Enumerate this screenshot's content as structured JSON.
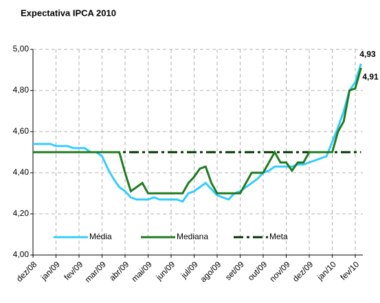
{
  "chart_data": {
    "type": "line",
    "title": "Expectativa IPCA 2010",
    "categories": [
      "dez/08",
      null,
      null,
      null,
      "jan/09",
      null,
      null,
      null,
      "fev/09",
      null,
      null,
      null,
      "mar/09",
      null,
      null,
      null,
      "abr/09",
      null,
      null,
      null,
      "mai/09",
      null,
      null,
      null,
      "jun/09",
      null,
      null,
      null,
      "jul/09",
      null,
      null,
      null,
      "ago/09",
      null,
      null,
      null,
      "set/09",
      null,
      null,
      null,
      "out/09",
      null,
      null,
      null,
      "nov/09",
      null,
      null,
      null,
      "dez/09",
      null,
      null,
      null,
      "jan/10",
      null,
      null,
      null,
      "fev/10",
      null
    ],
    "series": [
      {
        "name": "Média",
        "color": "#33ccff",
        "dash": "solid",
        "values": [
          4.54,
          4.54,
          4.54,
          4.54,
          4.53,
          4.53,
          4.53,
          4.52,
          4.52,
          4.52,
          4.5,
          4.5,
          4.48,
          4.42,
          4.37,
          4.33,
          4.31,
          4.28,
          4.27,
          4.27,
          4.27,
          4.28,
          4.27,
          4.27,
          4.27,
          4.27,
          4.26,
          4.3,
          4.31,
          4.33,
          4.35,
          4.32,
          4.29,
          4.28,
          4.27,
          4.3,
          4.31,
          4.33,
          4.35,
          4.37,
          4.4,
          4.41,
          4.43,
          4.43,
          4.43,
          4.43,
          4.44,
          4.44,
          4.45,
          4.46,
          4.47,
          4.48,
          4.55,
          4.62,
          4.7,
          4.8,
          4.84,
          4.93
        ],
        "value_labels": [
          null,
          null,
          null,
          null,
          null,
          null,
          null,
          null,
          null,
          null,
          null,
          null,
          null,
          null,
          null,
          null,
          null,
          null,
          null,
          null,
          null,
          null,
          null,
          null,
          null,
          null,
          null,
          null,
          null,
          null,
          null,
          null,
          null,
          null,
          null,
          null,
          null,
          null,
          null,
          null,
          null,
          null,
          null,
          null,
          null,
          null,
          null,
          null,
          null,
          null,
          null,
          null,
          null,
          null,
          null,
          null,
          null,
          "4,93"
        ]
      },
      {
        "name": "Mediana",
        "color": "#1e7b1e",
        "dash": "solid",
        "values": [
          4.5,
          4.5,
          4.5,
          4.5,
          4.5,
          4.5,
          4.5,
          4.5,
          4.5,
          4.5,
          4.5,
          4.5,
          4.5,
          4.5,
          4.5,
          4.5,
          4.4,
          4.31,
          4.33,
          4.35,
          4.3,
          4.3,
          4.3,
          4.3,
          4.3,
          4.3,
          4.3,
          4.35,
          4.38,
          4.42,
          4.43,
          4.35,
          4.3,
          4.3,
          4.3,
          4.3,
          4.3,
          4.35,
          4.4,
          4.4,
          4.4,
          4.45,
          4.5,
          4.45,
          4.45,
          4.41,
          4.45,
          4.45,
          4.5,
          4.5,
          4.5,
          4.5,
          4.5,
          4.6,
          4.65,
          4.8,
          4.81,
          4.91
        ],
        "value_labels": [
          null,
          null,
          null,
          null,
          null,
          null,
          null,
          null,
          null,
          null,
          null,
          null,
          null,
          null,
          null,
          null,
          null,
          null,
          null,
          null,
          null,
          null,
          null,
          null,
          null,
          null,
          null,
          null,
          null,
          null,
          null,
          null,
          null,
          null,
          null,
          null,
          null,
          null,
          null,
          null,
          null,
          null,
          null,
          null,
          null,
          null,
          null,
          null,
          null,
          null,
          null,
          null,
          null,
          null,
          null,
          null,
          null,
          "4,91"
        ]
      },
      {
        "name": "Meta",
        "color": "#003300",
        "dash": "dashdot",
        "values": [
          4.5,
          4.5,
          4.5,
          4.5,
          4.5,
          4.5,
          4.5,
          4.5,
          4.5,
          4.5,
          4.5,
          4.5,
          4.5,
          4.5,
          4.5,
          4.5,
          4.5,
          4.5,
          4.5,
          4.5,
          4.5,
          4.5,
          4.5,
          4.5,
          4.5,
          4.5,
          4.5,
          4.5,
          4.5,
          4.5,
          4.5,
          4.5,
          4.5,
          4.5,
          4.5,
          4.5,
          4.5,
          4.5,
          4.5,
          4.5,
          4.5,
          4.5,
          4.5,
          4.5,
          4.5,
          4.5,
          4.5,
          4.5,
          4.5,
          4.5,
          4.5,
          4.5,
          4.5,
          4.5,
          4.5,
          4.5,
          4.5,
          4.5
        ]
      }
    ],
    "ylim": [
      4,
      5
    ],
    "yticks": [
      {
        "value": 4,
        "label": "4,00"
      },
      {
        "value": 4.2,
        "label": "4,20"
      },
      {
        "value": 4.4,
        "label": "4,40"
      },
      {
        "value": 4.6,
        "label": "4,60"
      },
      {
        "value": 4.8,
        "label": "4,80"
      },
      {
        "value": 5,
        "label": "5,00"
      }
    ],
    "grid": true,
    "legend": "bottom"
  }
}
